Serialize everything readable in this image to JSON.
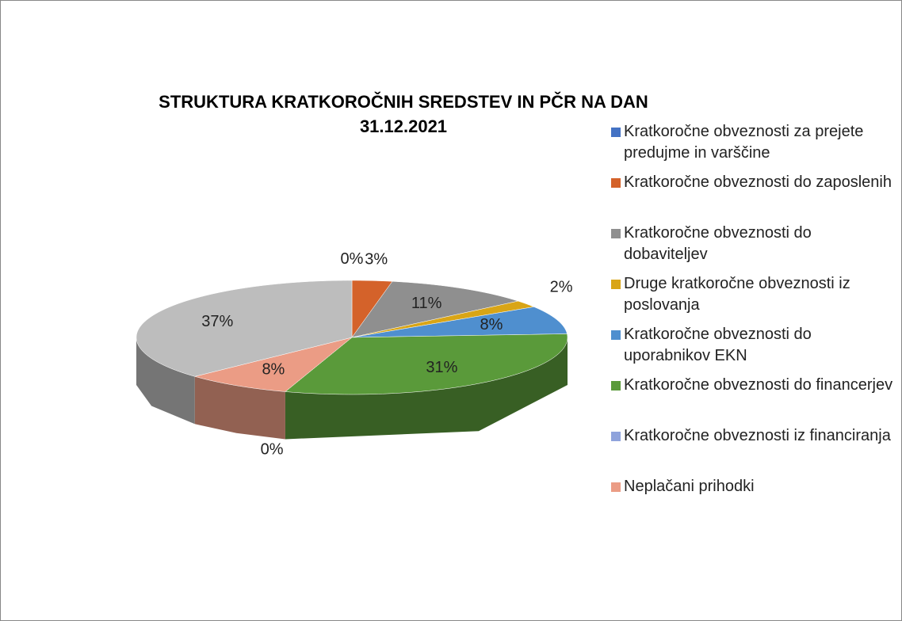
{
  "chart_data": {
    "type": "pie3d",
    "title": "STRUKTURA KRATKOROČNIH SREDSTEV IN PČR NA DAN 31.12.2021",
    "categories": [
      "Kratkoročne obveznosti za prejete predujme in varščine",
      "Kratkoročne obveznosti do zaposlenih",
      "Kratkoročne obveznosti do dobaviteljev",
      "Druge kratkoročne obveznosti iz poslovanja",
      "Kratkoročne obveznosti do uporabnikov EKN",
      "Kratkoročne obveznosti do financerjev",
      "Kratkoročne obveznosti iz financiranja",
      "Neplačani prihodki",
      null
    ],
    "values": [
      0,
      3,
      11,
      2,
      8,
      31,
      0,
      8,
      37
    ],
    "value_labels": [
      "0%",
      "3%",
      "11%",
      "2%",
      "8%",
      "31%",
      "0%",
      "8%",
      "37%"
    ],
    "colors": [
      "#4472c4",
      "#d4622a",
      "#8f8f8f",
      "#d9a516",
      "#4f8fcf",
      "#5a9a3a",
      "#8fa3dc",
      "#eb9c85",
      "#bdbdbd"
    ]
  }
}
